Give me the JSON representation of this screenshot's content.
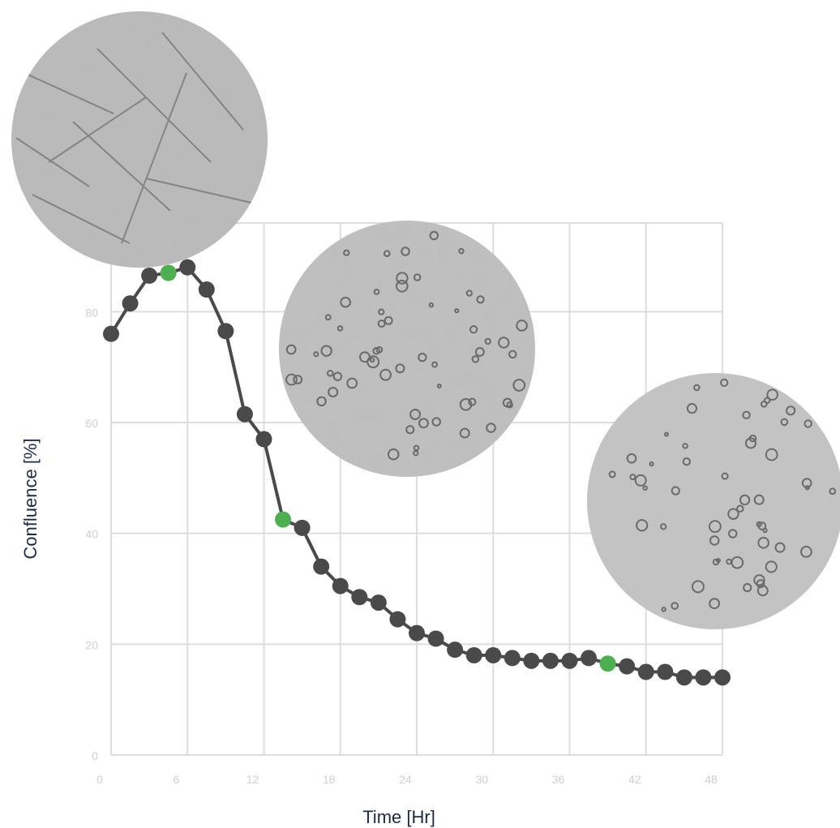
{
  "chart_data": {
    "type": "line",
    "xlabel": "Time [Hr]",
    "ylabel": "Confluence [%]",
    "xlim": [
      0,
      48
    ],
    "ylim": [
      0,
      96
    ],
    "x_ticks": [
      "0",
      "6",
      "12",
      "18",
      "24",
      "30",
      "36",
      "42",
      "48"
    ],
    "y_ticks": [
      "0",
      "20",
      "40",
      "60",
      "80"
    ],
    "grid": true,
    "series": [
      {
        "color": "#4a4a4a",
        "x": [
          0,
          1.5,
          3,
          4.5,
          6,
          7.5,
          9,
          10.5,
          12,
          13.5,
          15,
          16.5,
          18,
          19.5,
          21,
          22.5,
          24,
          25.5,
          27,
          28.5,
          30,
          31.5,
          33,
          34.5,
          36,
          37.5,
          39,
          40.5,
          42,
          43.5,
          45,
          46.5,
          48
        ],
        "values": [
          76,
          81.5,
          86.5,
          87,
          88,
          84,
          76.5,
          61.5,
          57,
          42.5,
          41,
          34,
          30.5,
          28.5,
          27.5,
          24.5,
          22,
          21,
          19,
          18,
          18,
          17.5,
          17,
          17,
          17,
          17.5,
          16.5,
          16,
          15,
          15,
          14,
          14,
          14
        ],
        "highlighted_points": [
          3,
          9,
          26
        ],
        "highlight_color": "#4caf50"
      }
    ]
  },
  "images": [
    {
      "label": "",
      "name": "micrograph-dense"
    },
    {
      "label": "",
      "name": "micrograph-medium"
    },
    {
      "label": "",
      "name": "micrograph-sparse"
    }
  ]
}
